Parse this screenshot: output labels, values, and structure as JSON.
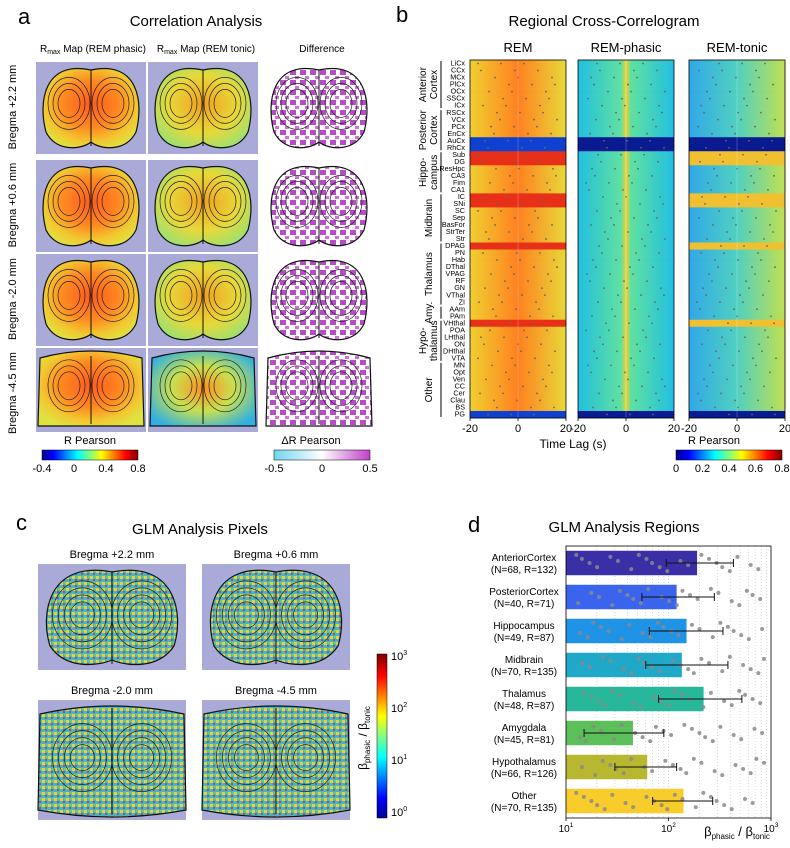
{
  "panel_a": {
    "letter": "a",
    "title": "Correlation Analysis",
    "col1_label": "R",
    "col1_sub": "max",
    "col1_rest": " Map (REM phasic)",
    "col2_label": "R",
    "col2_sub": "max",
    "col2_rest": " Map (REM tonic)",
    "col3_label": "Difference",
    "rows": [
      "Bregma +2.2 mm",
      "Bregma +0.6 mm",
      "Bregma -2.0 mm",
      "Bregma -4.5 mm"
    ],
    "cbar1_title": "R Pearson",
    "cbar1_ticks": [
      "-0.4",
      "0",
      "0.4",
      "0.8"
    ],
    "cbar2_title": "ΔR Pearson",
    "cbar2_ticks": [
      "-0.5",
      "0",
      "0.5"
    ]
  },
  "panel_b": {
    "letter": "b",
    "title": "Regional Cross-Correlogram",
    "subplots": [
      "REM",
      "REM-phasic",
      "REM-tonic"
    ],
    "regions": [
      "LiCx",
      "CCx",
      "MCx",
      "PlCx",
      "OCx",
      "SSCx",
      "ICx",
      "RSCx",
      "VCx",
      "PCx",
      "EnCx",
      "AuCx",
      "RhCx",
      "Sub",
      "DG",
      "ResHpc",
      "CA3",
      "Fim",
      "CA1",
      "IC",
      "SNi",
      "SC",
      "Sep",
      "BasFor",
      "StrTer",
      "Str",
      "DPAG",
      "PN",
      "Hab",
      "DThal",
      "VPAG",
      "RF",
      "GN",
      "VThal",
      "ZI",
      "AAm",
      "PAm",
      "VHthal",
      "POA",
      "LHthal",
      "ON",
      "DHthal",
      "VTA",
      "MN",
      "Opt",
      "Ven",
      "CC",
      "Cer",
      "Clau",
      "BS",
      "PG"
    ],
    "groups": [
      "Anterior Cortex",
      "Posterior Cortex",
      "Hippo-campus",
      "Midbrain",
      "Thalamus",
      "Amy.",
      "Hypo-thalamus",
      "Other"
    ],
    "xlabel": "Time Lag (s)",
    "xticks": [
      "-20",
      "0",
      "20"
    ],
    "cbar_title": "R Pearson",
    "cbar_ticks": [
      "0",
      "0.2",
      "0.4",
      "0.6",
      "0.8"
    ]
  },
  "panel_c": {
    "letter": "c",
    "title": "GLM Analysis Pixels",
    "maps": [
      "Bregma +2.2 mm",
      "Bregma +0.6 mm",
      "Bregma -2.0 mm",
      "Bregma -4.5 mm"
    ],
    "cbar_ticks": [
      "10",
      "10",
      "10",
      "10"
    ],
    "cbar_exps": [
      "3",
      "2",
      "1",
      "0"
    ],
    "cbar_label": "β",
    "cbar_label_sub1": "phasic",
    "cbar_label_mid": " / β",
    "cbar_label_sub2": "tonic"
  },
  "panel_d": {
    "letter": "d",
    "title": "GLM Analysis Regions",
    "xlabel_beta": "β",
    "xlabel_sub1": "phasic",
    "xlabel_mid": " / β",
    "xlabel_sub2": "tonic"
  },
  "colors": {
    "jet_low": "#00008f",
    "jet_high": "#800000",
    "diff_low": "#6fd6f0",
    "diff_high": "#c040c8",
    "bar_colors": [
      "#3b2fa8",
      "#3a63ee",
      "#1f93e6",
      "#1fa8c8",
      "#27b89c",
      "#5cc05a",
      "#b8b830",
      "#f8cc2a"
    ]
  },
  "chart_data": {
    "type": "bar",
    "title": "GLM Analysis Regions",
    "orientation": "horizontal",
    "x_scale": "log",
    "xlim": [
      10,
      1000
    ],
    "xticks": [
      "10",
      "10",
      "10"
    ],
    "xtick_exps": [
      "1",
      "2",
      "3"
    ],
    "xlabel": "β phasic / β tonic",
    "categories": [
      "AnteriorCortex",
      "PosteriorCortex",
      "Hippocampus",
      "Midbrain",
      "Thalamus",
      "Amygdala",
      "Hypothalamus",
      "Other"
    ],
    "category_counts": [
      "(N=68, R=132)",
      "(N=40, R=71)",
      "(N=49, R=87)",
      "(N=70, R=135)",
      "(N=48, R=87)",
      "(N=45, R=81)",
      "(N=66, R=126)",
      "(N=70, R=135)"
    ],
    "values": [
      190,
      120,
      150,
      135,
      220,
      45,
      62,
      140
    ],
    "error_low": [
      95,
      55,
      65,
      60,
      80,
      15,
      30,
      70
    ],
    "error_high": [
      430,
      280,
      340,
      380,
      520,
      90,
      120,
      270
    ]
  }
}
